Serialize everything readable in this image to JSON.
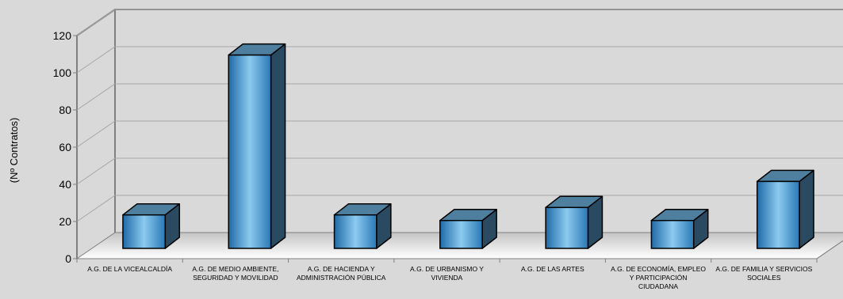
{
  "chart_data": {
    "type": "bar",
    "title": "",
    "xlabel": "",
    "ylabel": "(Nº Contratos)",
    "ylim": [
      0,
      120
    ],
    "yticks": [
      0,
      20,
      40,
      60,
      80,
      100,
      120
    ],
    "grid": true,
    "legend": "none",
    "style": "3d-column",
    "categories": [
      [
        "A.G.  DE LA VICEALCALDÍA"
      ],
      [
        "A.G.  DE MEDIO AMBIENTE,",
        "SEGURIDAD Y MOVILIDAD"
      ],
      [
        "A.G.  DE HACIENDA Y",
        "ADMINISTRACIÓN PÚBLICA"
      ],
      [
        "A.G.  DE URBANISMO Y",
        "VIVIENDA"
      ],
      [
        "A.G.  DE LAS ARTES"
      ],
      [
        "A.G.  DE ECONOMÍA, EMPLEO",
        "Y PARTICIPACIÓN",
        "CIUDADANA"
      ],
      [
        "A.G.  DE FAMILIA Y SERVICIOS",
        "SOCIALES"
      ]
    ],
    "values": [
      18,
      104,
      18,
      15,
      22,
      15,
      36
    ],
    "colors": {
      "background": "#d9d9d9",
      "bar_front_dark": "#1f6aa6",
      "bar_front_light": "#8ccaf0",
      "bar_side": "#2a4a62",
      "bar_top": "#4f7f9f",
      "grid": "#a6a6a6",
      "wall": "#808080",
      "floor_light": "#ffffff",
      "floor_dark": "#c8c8c8"
    }
  }
}
